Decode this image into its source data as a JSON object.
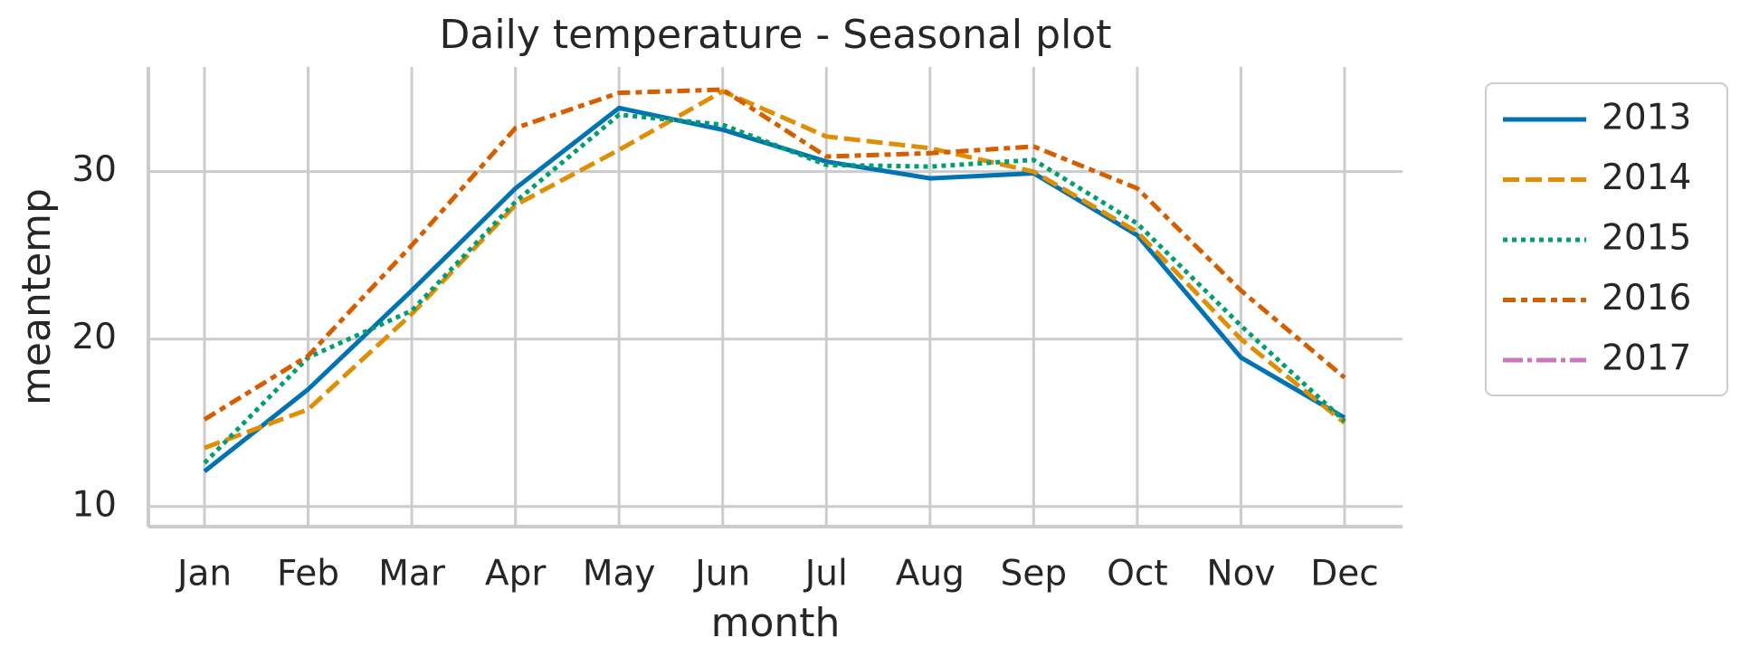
{
  "chart_data": {
    "type": "line",
    "title": "Daily temperature - Seasonal plot",
    "xlabel": "month",
    "ylabel": "meantemp",
    "categories": [
      "Jan",
      "Feb",
      "Mar",
      "Apr",
      "May",
      "Jun",
      "Jul",
      "Aug",
      "Sep",
      "Oct",
      "Nov",
      "Dec"
    ],
    "series": [
      {
        "name": "2013",
        "color": "#0173b2",
        "style": "solid",
        "values": [
          12.1,
          17.0,
          22.9,
          29.0,
          33.8,
          32.5,
          30.6,
          29.6,
          29.9,
          26.2,
          18.9,
          15.3
        ]
      },
      {
        "name": "2014",
        "color": "#de8f05",
        "style": "dashed",
        "values": [
          13.5,
          15.8,
          21.5,
          28.0,
          31.3,
          34.8,
          32.1,
          31.4,
          30.0,
          26.4,
          20.0,
          15.0
        ]
      },
      {
        "name": "2015",
        "color": "#029e73",
        "style": "dotted",
        "values": [
          12.6,
          18.9,
          21.7,
          28.2,
          33.4,
          32.8,
          30.4,
          30.3,
          30.7,
          26.9,
          20.8,
          15.1
        ]
      },
      {
        "name": "2016",
        "color": "#d55e00",
        "style": "dashdot",
        "values": [
          15.2,
          19.0,
          25.6,
          32.6,
          34.7,
          34.9,
          30.9,
          31.1,
          31.5,
          29.0,
          22.9,
          17.7
        ]
      },
      {
        "name": "2017",
        "color": "#cc78bc",
        "style": "longdashdot",
        "values": [
          null,
          null,
          null,
          null,
          null,
          null,
          null,
          null,
          null,
          null,
          null,
          null
        ]
      }
    ],
    "ylim": [
      8.8,
      36.25
    ],
    "yticks": [
      10,
      20,
      30
    ],
    "grid": true,
    "legend": "outside right"
  }
}
